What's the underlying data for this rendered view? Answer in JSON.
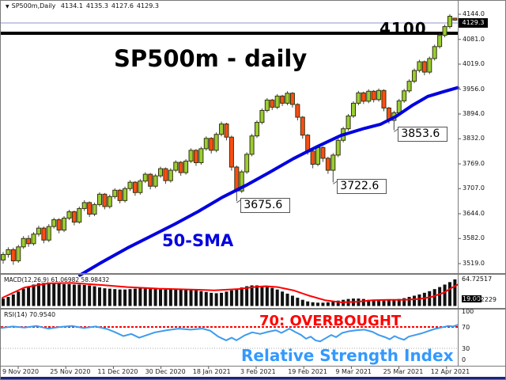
{
  "quote": {
    "symbol": "SP500m,Daily",
    "open": "4134.1",
    "high": "4135.3",
    "low": "4127.6",
    "close": "4129.3"
  },
  "colors": {
    "bull": "#9ACD32",
    "bear": "#FF4D12",
    "candle_border": "#333311",
    "wick": "#444444",
    "sma": "#0000E0",
    "macd_bar": "#111111",
    "macd_signal": "#FF0000",
    "rsi_line": "#3E9BEF",
    "overbought_red": "#FF0000",
    "annotation_blue": "#3399FF",
    "price_line": "#9090C8",
    "hline_black": "#000000",
    "level30_gray": "#aaaaaa",
    "taskbar_navy": "#1A267B"
  },
  "chart_data": {
    "type": "candlestick",
    "title_annotation": "SP500m - daily",
    "current_price": "4129.3",
    "hline": {
      "label": "4100",
      "price": 4100
    },
    "y_axis_ticks": [
      4144.0,
      4081.0,
      4019.0,
      3956.0,
      3894.0,
      3832.0,
      3769.0,
      3707.0,
      3644.0,
      3582.0,
      3519.0
    ],
    "x_axis_dates": [
      "9 Nov 2020",
      "25 Nov 2020",
      "11 Dec 2020",
      "30 Dec 2020",
      "18 Jan 2021",
      "3 Feb 2021",
      "19 Feb 2021",
      "9 Mar 2021",
      "25 Mar 2021",
      "12 Apr 2021"
    ],
    "candles": [
      [
        3528,
        3548,
        3519,
        3542
      ],
      [
        3542,
        3560,
        3534,
        3554
      ],
      [
        3554,
        3559,
        3516,
        3526
      ],
      [
        3526,
        3566,
        3521,
        3561
      ],
      [
        3561,
        3588,
        3556,
        3582
      ],
      [
        3582,
        3590,
        3561,
        3569
      ],
      [
        3569,
        3598,
        3564,
        3593
      ],
      [
        3593,
        3614,
        3587,
        3608
      ],
      [
        3608,
        3612,
        3570,
        3578
      ],
      [
        3578,
        3618,
        3573,
        3612
      ],
      [
        3612,
        3634,
        3607,
        3629
      ],
      [
        3629,
        3633,
        3595,
        3603
      ],
      [
        3603,
        3638,
        3598,
        3633
      ],
      [
        3633,
        3654,
        3628,
        3649
      ],
      [
        3649,
        3652,
        3615,
        3623
      ],
      [
        3623,
        3662,
        3619,
        3657
      ],
      [
        3657,
        3678,
        3651,
        3672
      ],
      [
        3672,
        3675,
        3636,
        3643
      ],
      [
        3643,
        3672,
        3638,
        3667
      ],
      [
        3667,
        3698,
        3662,
        3693
      ],
      [
        3693,
        3696,
        3655,
        3662
      ],
      [
        3662,
        3692,
        3657,
        3687
      ],
      [
        3687,
        3708,
        3681,
        3703
      ],
      [
        3703,
        3706,
        3670,
        3677
      ],
      [
        3677,
        3712,
        3672,
        3707
      ],
      [
        3707,
        3728,
        3701,
        3723
      ],
      [
        3723,
        3726,
        3689,
        3697
      ],
      [
        3697,
        3731,
        3692,
        3726
      ],
      [
        3726,
        3748,
        3721,
        3743
      ],
      [
        3743,
        3746,
        3705,
        3713
      ],
      [
        3713,
        3744,
        3708,
        3739
      ],
      [
        3739,
        3762,
        3734,
        3757
      ],
      [
        3757,
        3760,
        3719,
        3727
      ],
      [
        3727,
        3758,
        3722,
        3753
      ],
      [
        3753,
        3778,
        3748,
        3773
      ],
      [
        3773,
        3776,
        3739,
        3747
      ],
      [
        3747,
        3781,
        3742,
        3776
      ],
      [
        3776,
        3808,
        3771,
        3803
      ],
      [
        3803,
        3806,
        3764,
        3772
      ],
      [
        3772,
        3812,
        3767,
        3807
      ],
      [
        3807,
        3838,
        3802,
        3833
      ],
      [
        3833,
        3836,
        3795,
        3803
      ],
      [
        3803,
        3848,
        3798,
        3843
      ],
      [
        3843,
        3875,
        3838,
        3869
      ],
      [
        3869,
        3872,
        3828,
        3836
      ],
      [
        3836,
        3840,
        3752,
        3761
      ],
      [
        3761,
        3765,
        3675.6,
        3701
      ],
      [
        3701,
        3754,
        3696,
        3749
      ],
      [
        3749,
        3798,
        3744,
        3793
      ],
      [
        3793,
        3844,
        3788,
        3839
      ],
      [
        3839,
        3878,
        3834,
        3873
      ],
      [
        3873,
        3908,
        3868,
        3903
      ],
      [
        3903,
        3934,
        3898,
        3929
      ],
      [
        3929,
        3932,
        3904,
        3911
      ],
      [
        3911,
        3944,
        3906,
        3939
      ],
      [
        3939,
        3942,
        3914,
        3921
      ],
      [
        3921,
        3951,
        3916,
        3946
      ],
      [
        3946,
        3949,
        3910,
        3918
      ],
      [
        3918,
        3921,
        3878,
        3886
      ],
      [
        3886,
        3889,
        3832,
        3841
      ],
      [
        3841,
        3844,
        3792,
        3801
      ],
      [
        3801,
        3805,
        3758,
        3768
      ],
      [
        3768,
        3815,
        3763,
        3810
      ],
      [
        3810,
        3813,
        3774,
        3783
      ],
      [
        3783,
        3787,
        3744,
        3753
      ],
      [
        3753,
        3796,
        3722.6,
        3791
      ],
      [
        3791,
        3833,
        3786,
        3828
      ],
      [
        3828,
        3862,
        3823,
        3857
      ],
      [
        3857,
        3894,
        3852,
        3889
      ],
      [
        3889,
        3926,
        3884,
        3921
      ],
      [
        3921,
        3952,
        3916,
        3947
      ],
      [
        3947,
        3950,
        3919,
        3926
      ],
      [
        3926,
        3956,
        3921,
        3951
      ],
      [
        3951,
        3954,
        3923,
        3930
      ],
      [
        3930,
        3958,
        3925,
        3953
      ],
      [
        3953,
        3956,
        3901,
        3909
      ],
      [
        3909,
        3912,
        3870,
        3878
      ],
      [
        3878,
        3902,
        3853.6,
        3897
      ],
      [
        3897,
        3932,
        3892,
        3927
      ],
      [
        3927,
        3957,
        3922,
        3952
      ],
      [
        3952,
        3981,
        3947,
        3976
      ],
      [
        3976,
        4008,
        3971,
        4003
      ],
      [
        4003,
        4030,
        3998,
        4025
      ],
      [
        4025,
        4028,
        3991,
        3999
      ],
      [
        3999,
        4038,
        3994,
        4033
      ],
      [
        4033,
        4068,
        4028,
        4063
      ],
      [
        4063,
        4096,
        4058,
        4091
      ],
      [
        4091,
        4118,
        4086,
        4113
      ],
      [
        4113,
        4144,
        4108,
        4139
      ],
      [
        4134.1,
        4135.3,
        4127.6,
        4129.3
      ]
    ],
    "sma": {
      "label": "50-SMA",
      "points": [
        [
          100,
          3490
        ],
        [
          130,
          3525
        ],
        [
          160,
          3558
        ],
        [
          190,
          3588
        ],
        [
          220,
          3618
        ],
        [
          250,
          3650
        ],
        [
          280,
          3685
        ],
        [
          310,
          3715
        ],
        [
          340,
          3748
        ],
        [
          370,
          3782
        ],
        [
          400,
          3812
        ],
        [
          430,
          3840
        ],
        [
          460,
          3858
        ],
        [
          480,
          3868
        ],
        [
          500,
          3888
        ],
        [
          520,
          3915
        ],
        [
          540,
          3938
        ],
        [
          560,
          3950
        ],
        [
          578,
          3960
        ]
      ]
    },
    "callouts": [
      {
        "text": "3675.6",
        "price": 3675.6,
        "candle_index": 46
      },
      {
        "text": "3722.6",
        "price": 3722.6,
        "candle_index": 65
      },
      {
        "text": "3853.6",
        "price": 3853.6,
        "candle_index": 77
      }
    ],
    "macd": {
      "header": "MACD(12,26,9) 61.06982 58.98432",
      "max_label": "64.72517",
      "value_labels": [
        "19.00",
        "0.2229"
      ],
      "histogram": [
        18,
        22,
        28,
        35,
        42,
        48,
        52,
        55,
        56,
        56,
        55,
        54,
        53,
        53,
        52,
        52,
        51,
        50,
        48,
        45,
        43,
        42,
        41,
        40,
        40,
        41,
        42,
        43,
        43,
        42,
        41,
        40,
        40,
        41,
        42,
        41,
        40,
        39,
        38,
        36,
        34,
        32,
        31,
        32,
        35,
        38,
        42,
        45,
        48,
        50,
        50,
        49,
        47,
        44,
        40,
        35,
        30,
        25,
        20,
        15,
        11,
        9,
        8,
        8,
        9,
        11,
        13,
        15,
        17,
        18,
        18,
        17,
        15,
        14,
        13,
        13,
        14,
        15,
        17,
        19,
        22,
        25,
        28,
        32,
        36,
        41,
        46,
        52,
        58,
        64.7
      ],
      "signal_points": [
        [
          2,
          20
        ],
        [
          30,
          45
        ],
        [
          60,
          55
        ],
        [
          90,
          56
        ],
        [
          120,
          52
        ],
        [
          160,
          46
        ],
        [
          200,
          42
        ],
        [
          240,
          40
        ],
        [
          270,
          38
        ],
        [
          300,
          41
        ],
        [
          320,
          46
        ],
        [
          335,
          48
        ],
        [
          350,
          46
        ],
        [
          370,
          38
        ],
        [
          390,
          25
        ],
        [
          410,
          14
        ],
        [
          430,
          9
        ],
        [
          450,
          10
        ],
        [
          470,
          14
        ],
        [
          490,
          15
        ],
        [
          510,
          15
        ],
        [
          530,
          17
        ],
        [
          545,
          22
        ],
        [
          560,
          32
        ],
        [
          572,
          46
        ],
        [
          578,
          52
        ]
      ]
    },
    "rsi": {
      "header": "RSI(14) 70.9540",
      "levels": [
        100,
        70,
        30,
        0
      ],
      "overbought_text": "70: OVERBOUGHT",
      "annotation": "Relative Strength Index",
      "points": [
        [
          0,
          68
        ],
        [
          15,
          71
        ],
        [
          30,
          69
        ],
        [
          45,
          72
        ],
        [
          60,
          67
        ],
        [
          75,
          70
        ],
        [
          90,
          72
        ],
        [
          105,
          68
        ],
        [
          120,
          71
        ],
        [
          135,
          66
        ],
        [
          145,
          60
        ],
        [
          155,
          53
        ],
        [
          165,
          57
        ],
        [
          175,
          50
        ],
        [
          185,
          55
        ],
        [
          195,
          60
        ],
        [
          210,
          64
        ],
        [
          225,
          67
        ],
        [
          240,
          65
        ],
        [
          255,
          67
        ],
        [
          265,
          63
        ],
        [
          275,
          52
        ],
        [
          285,
          45
        ],
        [
          292,
          50
        ],
        [
          298,
          45
        ],
        [
          308,
          54
        ],
        [
          318,
          60
        ],
        [
          328,
          57
        ],
        [
          338,
          61
        ],
        [
          348,
          64
        ],
        [
          355,
          59
        ],
        [
          365,
          67
        ],
        [
          372,
          61
        ],
        [
          380,
          55
        ],
        [
          386,
          48
        ],
        [
          392,
          52
        ],
        [
          398,
          45
        ],
        [
          404,
          43
        ],
        [
          412,
          50
        ],
        [
          418,
          55
        ],
        [
          424,
          51
        ],
        [
          432,
          59
        ],
        [
          440,
          62
        ],
        [
          450,
          64
        ],
        [
          460,
          65
        ],
        [
          470,
          61
        ],
        [
          478,
          55
        ],
        [
          486,
          51
        ],
        [
          492,
          47
        ],
        [
          498,
          53
        ],
        [
          504,
          49
        ],
        [
          510,
          46
        ],
        [
          516,
          52
        ],
        [
          524,
          55
        ],
        [
          532,
          58
        ],
        [
          540,
          62
        ],
        [
          548,
          66
        ],
        [
          554,
          68
        ],
        [
          560,
          70
        ],
        [
          566,
          72
        ],
        [
          572,
          71
        ],
        [
          578,
          74
        ]
      ]
    }
  }
}
